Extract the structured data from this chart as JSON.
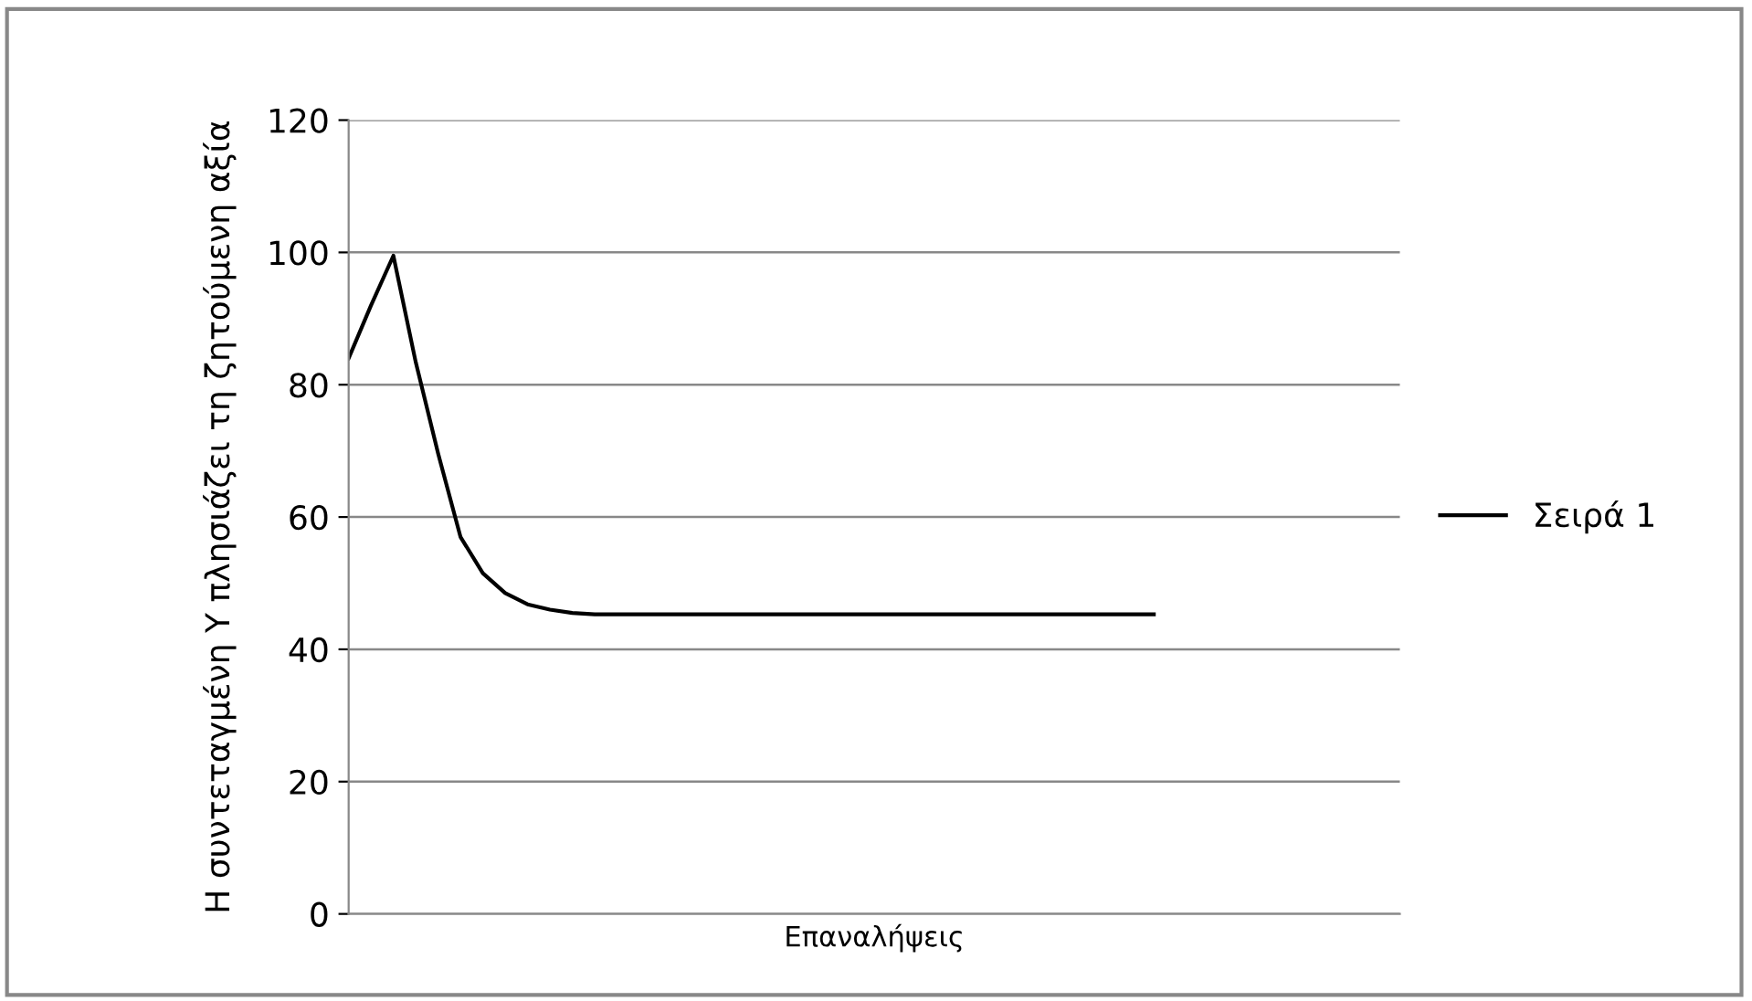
{
  "chart_data": {
    "type": "line",
    "xlabel": "Επαναλήψεις",
    "ylabel": "Η συντεταγμένη Υ πλησιάζει τη ζητούμενη αξία",
    "categories": [
      null,
      null,
      null,
      null,
      null,
      null,
      null,
      null,
      null,
      null,
      null,
      null,
      null,
      null,
      null,
      null,
      null,
      null,
      null,
      null,
      null,
      null,
      null,
      null,
      null,
      null,
      null,
      null,
      null,
      null,
      null,
      null,
      null,
      null,
      null,
      null,
      null,
      null,
      null,
      null,
      null,
      null,
      null,
      null,
      null,
      null,
      null,
      null
    ],
    "series": [
      {
        "name": "Σειρά 1",
        "color": "#000000",
        "values": [
          84,
          92,
          99.5,
          83.4,
          69.6,
          57,
          51.5,
          48.5,
          46.8,
          46,
          45.5,
          45.3,
          45.3,
          45.3,
          45.3,
          45.3,
          45.3,
          45.3,
          45.3,
          45.3,
          45.3,
          45.3,
          45.3,
          45.3,
          45.3,
          45.3,
          45.3,
          45.3,
          45.3,
          45.3,
          45.3,
          45.3,
          45.3,
          45.3,
          45.3,
          45.3,
          45.3,
          null,
          null,
          null,
          null,
          null,
          null,
          null,
          null,
          null,
          null,
          null
        ]
      }
    ],
    "ylim": [
      0,
      120
    ],
    "yticks": [
      0,
      20,
      40,
      60,
      80,
      100,
      120
    ],
    "grid": "y",
    "legend": "right",
    "marker": "none",
    "line_style": "solid",
    "tick_labels": "y"
  }
}
